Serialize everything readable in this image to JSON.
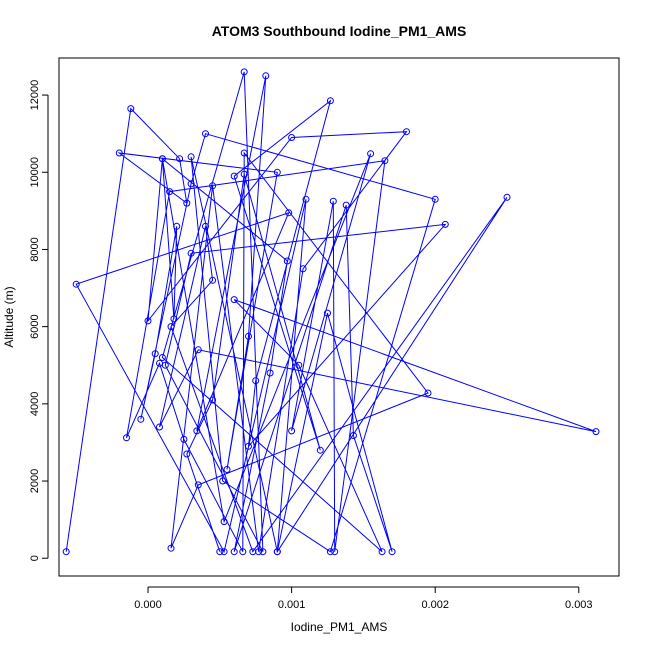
{
  "chart_data": {
    "type": "line",
    "title": "ATOM3 Southbound Iodine_PM1_AMS",
    "xlabel": "Iodine_PM1_AMS",
    "ylabel": "Altitude (m)",
    "xlim": [
      -0.00062,
      0.00328
    ],
    "ylim": [
      -460,
      12960
    ],
    "x_ticks": [
      {
        "value": 0.0,
        "label": "0.000"
      },
      {
        "value": 0.001,
        "label": "0.001"
      },
      {
        "value": 0.002,
        "label": "0.002"
      },
      {
        "value": 0.003,
        "label": "0.003"
      }
    ],
    "y_ticks": [
      {
        "value": 0,
        "label": "0"
      },
      {
        "value": 2000,
        "label": "2000"
      },
      {
        "value": 4000,
        "label": "4000"
      },
      {
        "value": 6000,
        "label": "6000"
      },
      {
        "value": 8000,
        "label": "8000"
      },
      {
        "value": 10000,
        "label": "10000"
      },
      {
        "value": 12000,
        "label": "12000"
      }
    ],
    "grid": false,
    "legend": "none",
    "markers": "open-circle",
    "color": "#0000ff",
    "series": [
      {
        "x": [
          -0.00057,
          -0.00012,
          0.00022,
          0.00027,
          -0.0002,
          0.0009,
          0.00055,
          0.0007,
          0.00082,
          0.00034,
          0.00098,
          -0.0005,
          0.00053,
          0.0011,
          0.0009,
          0.00125,
          0.0017,
          0.00143,
          0.00138,
          0.0006,
          0.00085,
          0.00097,
          0.0001,
          0.0,
          0.001,
          0.0018,
          0.00108,
          0.00077,
          0.00045,
          0.00016,
          0.00035,
          0.00195,
          0.00067,
          0.00066,
          0.00025,
          8e-05,
          -0.00015,
          0.00015,
          0.00165,
          0.0013,
          0.00129,
          0.001,
          0.00155,
          0.00053,
          0.0001,
          0.00018,
          0.0002,
          5e-05,
          -5e-05,
          0.0003,
          0.0004,
          0.002,
          0.00127,
          0.00052,
          0.0003,
          0.0009,
          0.0025,
          0.00073,
          0.00016,
          0.00045,
          0.0004,
          8e-05,
          0.00035,
          0.00312,
          0.0006,
          0.00105,
          0.00163,
          0.0001,
          0.00067,
          0.0008,
          0.00012,
          0.0003,
          0.00207,
          0.0007,
          0.00075,
          0.00127,
          0.0006,
          0.0012,
          0.00067,
          0.00045,
          0.00027,
          0.0005
        ],
        "y": [
          170,
          11650,
          10350,
          9200,
          10500,
          10000,
          2300,
          5750,
          12500,
          3300,
          8950,
          7100,
          170,
          9300,
          170,
          6350,
          170,
          3180,
          9150,
          170,
          4800,
          7700,
          10350,
          6150,
          10900,
          11050,
          7500,
          170,
          9650,
          260,
          1900,
          4280,
          10500,
          170,
          3080,
          5050,
          3120,
          9500,
          10300,
          170,
          9250,
          3300,
          10480,
          950,
          10350,
          6200,
          8600,
          5300,
          3600,
          9700,
          11000,
          9300,
          170,
          2000,
          10400,
          170,
          9350,
          170,
          6000,
          7200,
          8600,
          3400,
          5400,
          3280,
          6700,
          5000,
          170,
          5200,
          12600,
          170,
          5000,
          7900,
          8650,
          2900,
          4600,
          11850,
          9900,
          2800,
          9950,
          4100,
          2700,
          170
        ]
      }
    ]
  }
}
